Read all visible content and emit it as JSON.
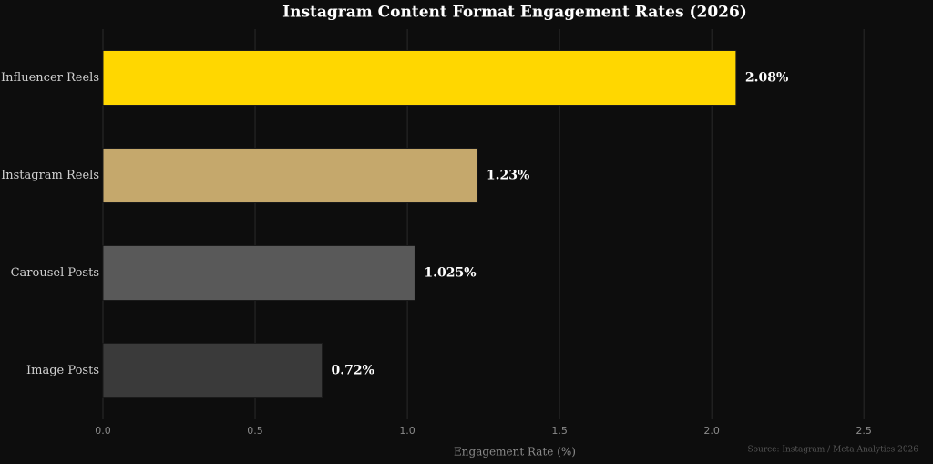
{
  "chart_data": {
    "type": "bar",
    "orientation": "horizontal",
    "title": "Instagram Content Format Engagement Rates (2026)",
    "x_label": "Engagement Rate (%)",
    "source": "Source: Instagram / Meta Analytics 2026",
    "categories": [
      "Influencer Reels",
      "Instagram Reels",
      "Carousel Posts",
      "Image Posts"
    ],
    "values": [
      2.08,
      1.23,
      1.025,
      0.72
    ],
    "value_labels": [
      "2.08%",
      "1.23%",
      "1.025%",
      "0.72%"
    ],
    "colors": [
      "#FFD700",
      "#C5A86C",
      "#595959",
      "#3A3A3A"
    ],
    "xlim": [
      0,
      2.7
    ],
    "xticks": [
      {
        "value": 0,
        "label": "0.0"
      },
      0.5,
      {
        "value": 1,
        "label": "1.0"
      },
      1.5,
      {
        "value": 2,
        "label": "2.0"
      },
      2.5
    ],
    "grid": true
  }
}
